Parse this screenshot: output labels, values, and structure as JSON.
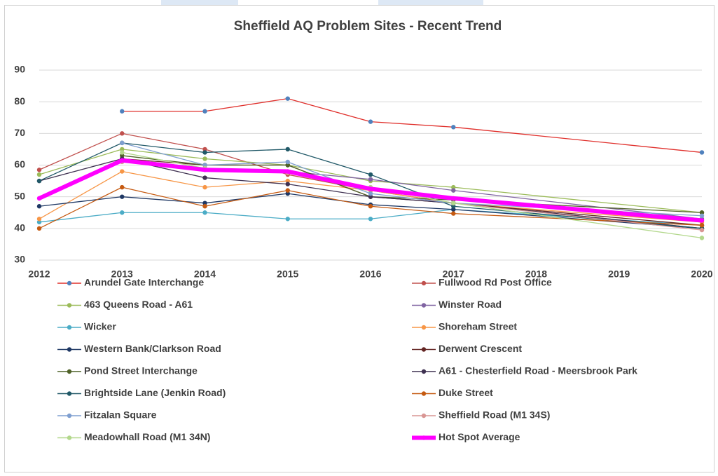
{
  "chart_data": {
    "type": "line",
    "title": "Sheffield AQ Problem Sites - Recent Trend",
    "x": [
      2012,
      2013,
      2014,
      2015,
      2016,
      2017,
      2020
    ],
    "xlim": [
      2012,
      2020
    ],
    "xticks": [
      2012,
      2013,
      2014,
      2015,
      2016,
      2017,
      2018,
      2019,
      2020
    ],
    "ylim": [
      30,
      90
    ],
    "yticks": [
      30,
      40,
      50,
      60,
      70,
      80,
      90
    ],
    "grid": true,
    "series": [
      {
        "name": "Arundel Gate Interchange",
        "color": "#e0302c",
        "marker_color": "#4f81bd",
        "values": [
          null,
          77,
          77,
          81,
          73.7,
          72,
          64
        ]
      },
      {
        "name": "Fullwood Rd Post Office",
        "color": "#c0504d",
        "values": [
          58.5,
          70,
          65,
          57,
          52,
          48,
          40
        ]
      },
      {
        "name": "463 Queens Road - A61",
        "color": "#9bbb59",
        "values": [
          57,
          65,
          62,
          60,
          55,
          53,
          45
        ]
      },
      {
        "name": "Winster Road",
        "color": "#8064a2",
        "values": [
          null,
          62,
          59,
          58,
          55.5,
          52,
          43
        ]
      },
      {
        "name": "Wicker",
        "color": "#4bacc6",
        "values": [
          42,
          45,
          45,
          43,
          43,
          46,
          41
        ]
      },
      {
        "name": "Shoreham Street",
        "color": "#f79646",
        "values": [
          43,
          58,
          53,
          55,
          52,
          48,
          42
        ]
      },
      {
        "name": "Western Bank/Clarkson Road",
        "color": "#1f3864",
        "values": [
          47,
          50,
          48,
          51,
          47.5,
          46,
          40
        ]
      },
      {
        "name": "Derwent Crescent",
        "color": "#632523",
        "values": [
          null,
          62,
          60,
          60,
          50,
          48,
          41
        ]
      },
      {
        "name": "Pond Street Interchange",
        "color": "#4f6228",
        "values": [
          null,
          63,
          60,
          60,
          50,
          49,
          45
        ]
      },
      {
        "name": "A61 - Chesterfield Road - Meersbrook Park",
        "color": "#3f3151",
        "values": [
          55,
          62,
          56,
          54,
          50,
          48,
          40
        ]
      },
      {
        "name": "Brightside Lane (Jenkin Road)",
        "color": "#215968",
        "values": [
          55,
          67,
          64,
          65,
          57,
          47,
          40
        ]
      },
      {
        "name": "Duke Street",
        "color": "#c55a11",
        "values": [
          40,
          53,
          47,
          52,
          47,
          44.7,
          41
        ]
      },
      {
        "name": "Fitzalan Square",
        "color": "#7f9fd0",
        "values": [
          null,
          67,
          60,
          61,
          51,
          48,
          44
        ]
      },
      {
        "name": "Sheffield Road (M1 34S)",
        "color": "#d99694",
        "values": [
          null,
          61,
          59,
          57.5,
          53,
          48,
          39.5
        ]
      },
      {
        "name": "Meadowhall Road (M1 34N)",
        "color": "#b3d88c",
        "values": [
          null,
          64,
          59,
          58,
          53,
          48,
          37
        ]
      },
      {
        "name": "Hot Spot Average",
        "color": "#ff00ff",
        "width": 6,
        "values": [
          49.5,
          61.5,
          58.5,
          58,
          52.5,
          49.5,
          42.5
        ]
      }
    ]
  }
}
